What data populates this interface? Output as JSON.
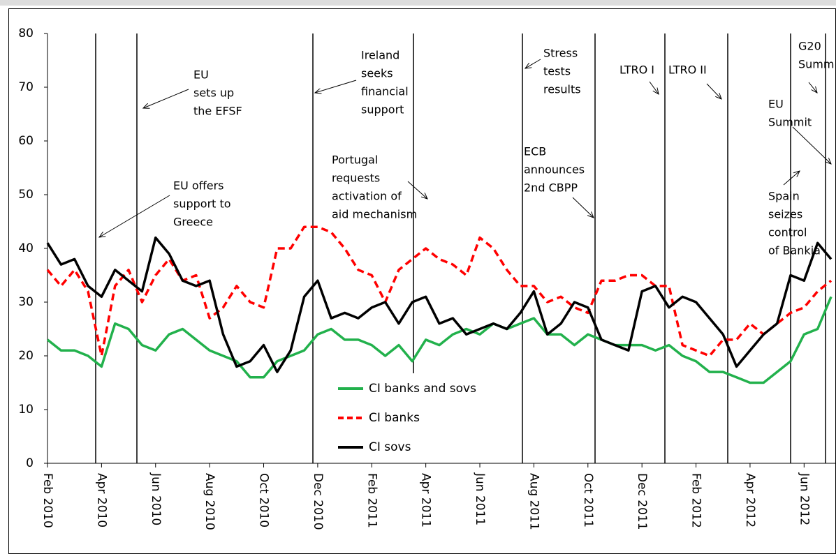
{
  "chart_data": {
    "type": "line",
    "categories": [
      "Feb 2010",
      null,
      null,
      null,
      "Apr 2010",
      null,
      null,
      null,
      "Jun 2010",
      null,
      null,
      null,
      "Aug 2010",
      null,
      null,
      null,
      "Oct 2010",
      null,
      null,
      null,
      "Dec 2010",
      null,
      null,
      null,
      "Feb 2011",
      null,
      null,
      null,
      "Apr 2011",
      null,
      null,
      null,
      "Jun 2011",
      null,
      null,
      null,
      "Aug 2011",
      null,
      null,
      null,
      "Oct 2011",
      null,
      null,
      null,
      "Dec 2011",
      null,
      null,
      null,
      "Feb 2012",
      null,
      null,
      null,
      "Apr 2012",
      null,
      null,
      null,
      "Jun 2012",
      null,
      null
    ],
    "series": [
      {
        "name": "CI banks and sovs",
        "color": "#22b14c",
        "dash": "solid",
        "values": [
          23,
          21,
          21,
          20,
          18,
          26,
          25,
          22,
          21,
          24,
          25,
          23,
          21,
          20,
          19,
          16,
          16,
          19,
          20,
          21,
          24,
          25,
          23,
          23,
          22,
          20,
          22,
          19,
          23,
          22,
          24,
          25,
          24,
          26,
          25,
          26,
          27,
          24,
          24,
          22,
          24,
          23,
          22,
          22,
          22,
          21,
          22,
          20,
          19,
          17,
          17,
          16,
          15,
          15,
          17,
          19,
          24,
          25,
          31
        ]
      },
      {
        "name": "CI banks",
        "color": "#ff0000",
        "dash": "dashed",
        "values": [
          36,
          33,
          36,
          32,
          20,
          33,
          36,
          30,
          35,
          38,
          34,
          35,
          27,
          29,
          33,
          30,
          29,
          40,
          40,
          44,
          44,
          43,
          40,
          36,
          35,
          30,
          36,
          38,
          40,
          38,
          37,
          35,
          42,
          40,
          36,
          33,
          33,
          30,
          31,
          29,
          28,
          34,
          34,
          35,
          35,
          33,
          33,
          22,
          21,
          20,
          23,
          23,
          26,
          24,
          26,
          28,
          29,
          32,
          34
        ]
      },
      {
        "name": "CI sovs",
        "color": "#000000",
        "dash": "solid",
        "values": [
          41,
          37,
          38,
          33,
          31,
          36,
          34,
          32,
          42,
          39,
          34,
          33,
          34,
          24,
          18,
          19,
          22,
          17,
          21,
          31,
          34,
          27,
          28,
          27,
          29,
          30,
          26,
          30,
          31,
          26,
          27,
          24,
          25,
          26,
          25,
          28,
          32,
          24,
          26,
          30,
          29,
          23,
          22,
          21,
          32,
          33,
          29,
          31,
          30,
          27,
          24,
          18,
          21,
          24,
          26,
          35,
          34,
          41,
          38
        ]
      }
    ],
    "ylim": [
      0,
      80
    ],
    "yticks": [
      0,
      10,
      20,
      30,
      40,
      50,
      60,
      70,
      80
    ],
    "annotations": [
      [
        "EU offers",
        "support to",
        "Greece"
      ],
      [
        "EU",
        "sets up",
        "the EFSF"
      ],
      [
        "Ireland",
        "seeks",
        "financial",
        "support"
      ],
      [
        "Portugal",
        "requests",
        "activation of",
        "aid mechanism"
      ],
      [
        "Stress",
        "tests",
        "results"
      ],
      [
        "ECB",
        "announces",
        "2nd CBPP"
      ],
      [
        "LTRO I"
      ],
      [
        "LTRO II"
      ],
      [
        "G20",
        "Summit"
      ],
      [
        "EU",
        "Summit"
      ],
      [
        "Spain",
        "seizes",
        "control",
        "of Bankia"
      ]
    ]
  }
}
